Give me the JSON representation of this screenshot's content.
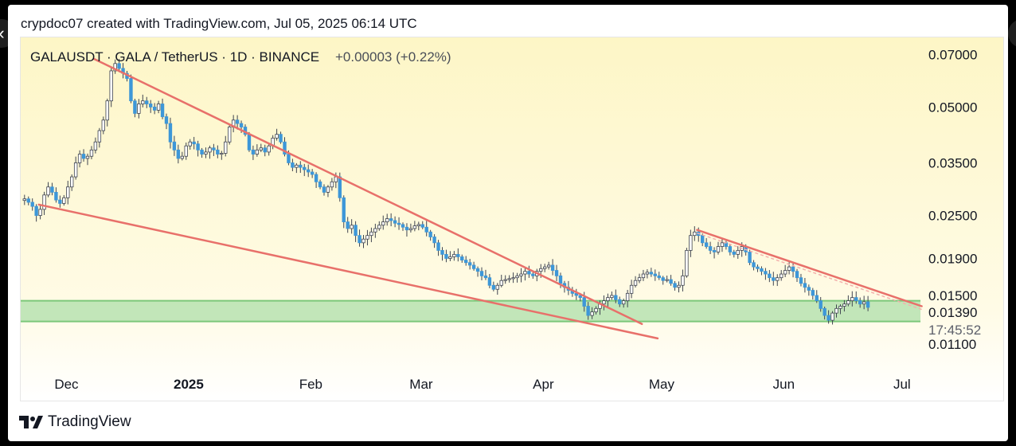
{
  "header": {
    "attribution": "crypdoc07 created with TradingView.com, Jul 05, 2025 06:14 UTC"
  },
  "chart_data": {
    "type": "candlestick",
    "symbol": "GALAUSDT",
    "title": "GALAUSDT · GALA / TetherUS · 1D · BINANCE",
    "change": "+0.00003 (+0.22%)",
    "timeframe": "1D",
    "exchange": "BINANCE",
    "y_scale": "log",
    "ylim": [
      0.0092,
      0.078
    ],
    "y_ticks": [
      "0.07000",
      "0.05000",
      "0.03500",
      "0.02500",
      "0.01900",
      "0.01500",
      "0.01100"
    ],
    "last_price": "0.01390",
    "countdown": "17:45:52",
    "x_ticks": [
      "Dec",
      "2025",
      "Feb",
      "Mar",
      "Apr",
      "May",
      "Jun",
      "Jul"
    ],
    "background": "yellow gradient",
    "support_zone": {
      "low": 0.0127,
      "high": 0.0145,
      "color": "#7cc87a"
    },
    "trendlines": [
      {
        "name": "falling-wedge-upper",
        "from": [
          "2024-12-08",
          0.068
        ],
        "to": [
          "2025-04-26",
          0.0125
        ]
      },
      {
        "name": "falling-wedge-lower",
        "from": [
          "2024-11-24",
          0.0268
        ],
        "to": [
          "2025-04-30",
          0.0114
        ]
      },
      {
        "name": "descending-resistance",
        "from": [
          "2025-05-10",
          0.0228
        ],
        "to": [
          "2025-07-06",
          0.014
        ]
      }
    ],
    "series": [
      {
        "values": [
          0.0278,
          0.0272,
          0.0265,
          0.025,
          0.026,
          0.0285,
          0.03,
          0.029,
          0.0276,
          0.027,
          0.028,
          0.03,
          0.032,
          0.035,
          0.037,
          0.036,
          0.0365,
          0.038,
          0.04,
          0.043,
          0.046,
          0.052,
          0.063,
          0.066,
          0.064,
          0.062,
          0.06,
          0.052,
          0.048,
          0.051,
          0.052,
          0.051,
          0.05,
          0.049,
          0.051,
          0.047,
          0.045,
          0.04,
          0.038,
          0.036,
          0.0365,
          0.039,
          0.04,
          0.0395,
          0.038,
          0.037,
          0.0375,
          0.0385,
          0.038,
          0.037,
          0.0372,
          0.04,
          0.044,
          0.046,
          0.045,
          0.044,
          0.042,
          0.038,
          0.037,
          0.038,
          0.0385,
          0.0375,
          0.039,
          0.041,
          0.042,
          0.04,
          0.037,
          0.035,
          0.034,
          0.0345,
          0.034,
          0.0335,
          0.033,
          0.0325,
          0.031,
          0.03,
          0.029,
          0.03,
          0.031,
          0.032,
          0.028,
          0.024,
          0.023,
          0.0235,
          0.022,
          0.021,
          0.0215,
          0.022,
          0.0225,
          0.023,
          0.0235,
          0.024,
          0.0245,
          0.0242,
          0.0238,
          0.0236,
          0.0232,
          0.0228,
          0.023,
          0.0234,
          0.0236,
          0.0232,
          0.0225,
          0.0218,
          0.021,
          0.02,
          0.0195,
          0.019,
          0.0192,
          0.0195,
          0.0192,
          0.0188,
          0.0185,
          0.0182,
          0.0178,
          0.0175,
          0.017,
          0.0168,
          0.016,
          0.0156,
          0.016,
          0.0165,
          0.0166,
          0.0167,
          0.0168,
          0.017,
          0.0172,
          0.0175,
          0.0172,
          0.017,
          0.0175,
          0.0178,
          0.018,
          0.0182,
          0.0176,
          0.017,
          0.0162,
          0.0158,
          0.0155,
          0.0152,
          0.015,
          0.0148,
          0.014,
          0.0132,
          0.0135,
          0.0138,
          0.0142,
          0.0145,
          0.0148,
          0.015,
          0.0146,
          0.0142,
          0.0145,
          0.0152,
          0.016,
          0.0165,
          0.0168,
          0.0172,
          0.0174,
          0.0172,
          0.017,
          0.0168,
          0.0165,
          0.0166,
          0.0162,
          0.0158,
          0.016,
          0.017,
          0.02,
          0.022,
          0.0225,
          0.022,
          0.021,
          0.0205,
          0.02,
          0.0198,
          0.0205,
          0.021,
          0.0205,
          0.0198,
          0.0195,
          0.02,
          0.0205,
          0.0198,
          0.0185,
          0.018,
          0.0178,
          0.0175,
          0.0172,
          0.0168,
          0.0165,
          0.0168,
          0.0172,
          0.0176,
          0.018,
          0.0175,
          0.0168,
          0.0162,
          0.0158,
          0.0155,
          0.015,
          0.0145,
          0.0138,
          0.0132,
          0.0128,
          0.0134,
          0.0138,
          0.014,
          0.0142,
          0.0145,
          0.0148,
          0.0145,
          0.0142,
          0.0144,
          0.0139
        ]
      }
    ]
  },
  "footer": {
    "brand": "TradingView"
  }
}
